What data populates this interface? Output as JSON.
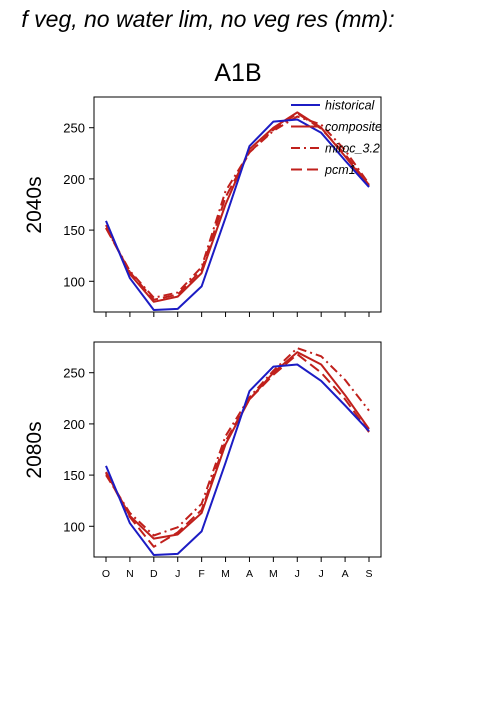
{
  "figure": {
    "title": "f veg, no water lim, no veg res (mm):",
    "scenario": "A1B"
  },
  "chart_data": [
    {
      "type": "line",
      "row_label": "2040s",
      "categories": [
        "O",
        "N",
        "D",
        "J",
        "F",
        "M",
        "A",
        "M",
        "J",
        "J",
        "A",
        "S"
      ],
      "ylim": [
        70,
        280
      ],
      "yticks": [
        100,
        150,
        200,
        250
      ],
      "legend": {
        "position": "top-right",
        "entries": [
          "historical",
          "composite",
          "miroc_3.2",
          "pcm1"
        ]
      },
      "series": [
        {
          "name": "historical",
          "color": "#1c1cc4",
          "dash": "solid",
          "values": [
            159,
            103,
            72,
            73,
            95,
            162,
            232,
            256,
            258,
            245,
            218,
            192
          ]
        },
        {
          "name": "composite",
          "color": "#c0201c",
          "dash": "solid",
          "values": [
            155,
            107,
            80,
            85,
            108,
            175,
            229,
            250,
            265,
            250,
            222,
            193
          ]
        },
        {
          "name": "miroc_3.2",
          "color": "#c0201c",
          "dash": "dashdot",
          "values": [
            152,
            110,
            84,
            89,
            114,
            188,
            226,
            247,
            261,
            253,
            228,
            195
          ]
        },
        {
          "name": "pcm1",
          "color": "#c0201c",
          "dash": "dash",
          "values": [
            152,
            109,
            82,
            87,
            111,
            182,
            226,
            248,
            264,
            249,
            224,
            194
          ]
        }
      ]
    },
    {
      "type": "line",
      "row_label": "2080s",
      "categories": [
        "O",
        "N",
        "D",
        "J",
        "F",
        "M",
        "A",
        "M",
        "J",
        "J",
        "A",
        "S"
      ],
      "ylim": [
        70,
        280
      ],
      "yticks": [
        100,
        150,
        200,
        250
      ],
      "series": [
        {
          "name": "historical",
          "color": "#1c1cc4",
          "dash": "solid",
          "values": [
            159,
            103,
            72,
            73,
            95,
            162,
            232,
            256,
            258,
            242,
            218,
            193
          ]
        },
        {
          "name": "composite",
          "color": "#c0201c",
          "dash": "solid",
          "values": [
            153,
            110,
            88,
            92,
            113,
            180,
            224,
            250,
            270,
            258,
            228,
            195
          ]
        },
        {
          "name": "miroc_3.2",
          "color": "#c0201c",
          "dash": "dashdot",
          "values": [
            150,
            113,
            91,
            99,
            122,
            188,
            226,
            252,
            274,
            266,
            243,
            213
          ]
        },
        {
          "name": "pcm1",
          "color": "#c0201c",
          "dash": "dash",
          "values": [
            152,
            109,
            80,
            94,
            116,
            183,
            224,
            248,
            268,
            250,
            224,
            192
          ]
        }
      ]
    }
  ]
}
